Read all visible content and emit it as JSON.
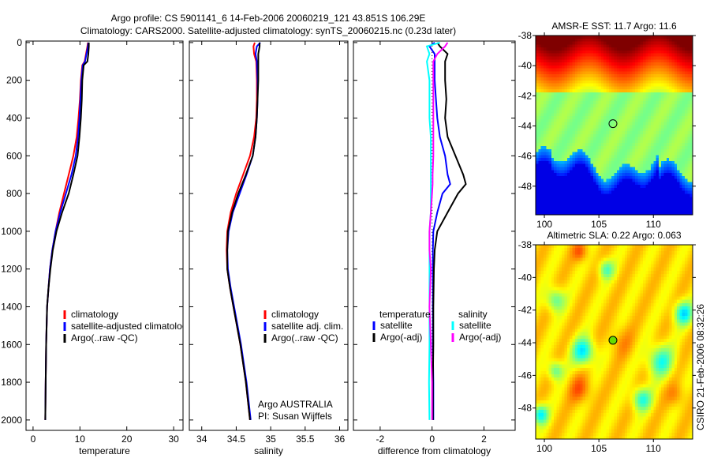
{
  "title": {
    "line1": "Argo profile: CS 5901141_6 14-Feb-2006 20060219_121 43.851S 106.29E",
    "line2": "Climatology: CARS2000. Satellite-adjusted climatology: synTS_20060215.nc (0.23d later)"
  },
  "footer_stamp": "CSIRO 21-Feb-2006 08:32:26",
  "credit": {
    "line1": "Argo AUSTRALIA",
    "line2": "PI: Susan Wijffels"
  },
  "colors": {
    "climatology": "#ff0000",
    "satellite": "#0000ff",
    "argo": "#000000",
    "sal_satellite": "#00ffff",
    "sal_argo": "#ff00ff"
  },
  "chart_data": [
    {
      "type": "line",
      "id": "temperature",
      "xlabel": "temperature",
      "ylabel": "",
      "xlim": [
        -1.5,
        32
      ],
      "ylim": [
        2055,
        -8
      ],
      "xticks": [
        0,
        10,
        20,
        30
      ],
      "yticks": [
        0,
        200,
        400,
        600,
        800,
        1000,
        1200,
        1400,
        1600,
        1800,
        2000
      ],
      "legend": {
        "placement": "center-left",
        "entries": [
          "climatology",
          "satellite-adjusted climatology",
          "Argo(..raw -QC)"
        ]
      },
      "depth": [
        0,
        20,
        60,
        100,
        120,
        200,
        300,
        400,
        500,
        600,
        700,
        800,
        900,
        1000,
        1100,
        1200,
        1300,
        1400,
        1600,
        1800,
        2000
      ],
      "series": [
        {
          "name": "climatology",
          "color": "#ff0000",
          "values": [
            11.7,
            11.6,
            11.3,
            11.0,
            10.5,
            10.2,
            10.0,
            9.7,
            9.3,
            8.6,
            7.6,
            6.6,
            5.6,
            4.8,
            4.1,
            3.6,
            3.3,
            3.0,
            2.8,
            2.7,
            2.6
          ]
        },
        {
          "name": "satellite-adjusted climatology",
          "color": "#0000ff",
          "values": [
            11.8,
            11.7,
            11.4,
            11.1,
            10.6,
            10.3,
            10.1,
            9.9,
            9.6,
            9.1,
            8.2,
            7.0,
            5.8,
            4.8,
            4.1,
            3.6,
            3.3,
            3.0,
            2.8,
            2.7,
            2.6
          ]
        },
        {
          "name": "Argo(..raw -QC)",
          "color": "#000000",
          "values": [
            11.9,
            11.9,
            11.8,
            11.6,
            10.8,
            10.5,
            10.4,
            10.2,
            9.9,
            9.5,
            8.6,
            7.6,
            6.2,
            5.0,
            4.2,
            3.7,
            3.3,
            3.0,
            2.8,
            2.7,
            2.6
          ]
        }
      ]
    },
    {
      "type": "line",
      "id": "salinity",
      "xlabel": "salinity",
      "xlim": [
        33.82,
        36.12
      ],
      "ylim": [
        2055,
        -8
      ],
      "xticks": [
        34,
        34.5,
        35,
        35.5,
        36
      ],
      "legend": {
        "placement": "center-right",
        "entries": [
          "climatology",
          "satellite adj. clim.",
          "Argo(..raw -QC)"
        ]
      },
      "depth": [
        0,
        20,
        60,
        100,
        200,
        300,
        400,
        500,
        600,
        700,
        800,
        900,
        1000,
        1100,
        1200,
        1300,
        1400,
        1600,
        1800,
        2000
      ],
      "series": [
        {
          "name": "climatology",
          "color": "#ff0000",
          "values": [
            34.77,
            34.75,
            34.76,
            34.79,
            34.8,
            34.8,
            34.79,
            34.76,
            34.7,
            34.6,
            34.5,
            34.42,
            34.37,
            34.36,
            34.37,
            34.41,
            34.46,
            34.56,
            34.64,
            34.7
          ]
        },
        {
          "name": "satellite adj. clim.",
          "color": "#0000ff",
          "values": [
            34.85,
            34.8,
            34.78,
            34.8,
            34.81,
            34.81,
            34.8,
            34.78,
            34.74,
            34.65,
            34.55,
            34.45,
            34.39,
            34.37,
            34.38,
            34.42,
            34.47,
            34.57,
            34.65,
            34.71
          ]
        },
        {
          "name": "Argo(..raw -QC)",
          "color": "#000000",
          "values": [
            34.84,
            34.84,
            34.82,
            34.82,
            34.82,
            34.81,
            34.8,
            34.78,
            34.74,
            34.64,
            34.53,
            34.44,
            34.38,
            34.37,
            34.37,
            34.41,
            34.46,
            34.56,
            34.64,
            34.7
          ]
        }
      ]
    },
    {
      "type": "line",
      "id": "difference",
      "xlabel": "difference from climatology",
      "xlim": [
        -3.03,
        3.2
      ],
      "ylim": [
        2055,
        -8
      ],
      "xticks": [
        -2,
        0,
        2
      ],
      "legend": {
        "placement": "center",
        "headers": [
          "temperature",
          "salinity"
        ],
        "entries": [
          "satellite",
          "Argo(-adj)",
          "satellite",
          "Argo(-adj)"
        ]
      },
      "depth": [
        0,
        20,
        60,
        100,
        200,
        300,
        400,
        500,
        600,
        700,
        750,
        800,
        900,
        1000,
        1100,
        1200,
        1400,
        1600,
        1800,
        2000
      ],
      "series": [
        {
          "name": "temperature satellite",
          "color": "#0000ff",
          "values": [
            0.1,
            -0.1,
            0.1,
            0.1,
            0.1,
            0.15,
            0.2,
            0.3,
            0.5,
            0.6,
            0.7,
            0.4,
            0.2,
            0.05,
            0.03,
            0.03,
            0.03,
            0.03,
            0.05,
            0.05
          ]
        },
        {
          "name": "temperature Argo(-adj)",
          "color": "#000000",
          "values": [
            0.2,
            0.3,
            0.6,
            0.5,
            0.5,
            0.55,
            0.5,
            0.6,
            0.9,
            1.2,
            1.3,
            1.0,
            0.6,
            0.2,
            0.1,
            0.07,
            0.05,
            0.05,
            0.03,
            0.03
          ]
        },
        {
          "name": "salinity satellite",
          "color": "#00ffff",
          "values": [
            0.3,
            -0.2,
            -0.1,
            -0.2,
            -0.1,
            -0.1,
            -0.1,
            -0.05,
            -0.05,
            -0.05,
            -0.05,
            -0.05,
            -0.05,
            -0.1,
            -0.1,
            -0.1,
            -0.1,
            -0.1,
            -0.12,
            -0.1
          ]
        },
        {
          "name": "salinity Argo(-adj)",
          "color": "#ff00ff",
          "values": [
            0.6,
            0.5,
            0.2,
            0.05,
            0.05,
            0.05,
            0.05,
            0.05,
            0.05,
            0.02,
            0.02,
            0.0,
            -0.05,
            -0.1,
            -0.1,
            -0.05,
            -0.1,
            -0.05,
            0.0,
            0.0
          ]
        }
      ]
    },
    {
      "type": "heatmap",
      "id": "sst_map",
      "title": "AMSR-E SST: 11.7 Argo: 11.6",
      "xlim": [
        99.2,
        113.6
      ],
      "ylim": [
        -49.9,
        -38
      ],
      "xticks": [
        100,
        105,
        110
      ],
      "yticks": [
        -38,
        -40,
        -42,
        -44,
        -46,
        -48
      ],
      "marker": {
        "lon": 106.29,
        "lat": -43.85
      }
    },
    {
      "type": "heatmap",
      "id": "sla_map",
      "title": "Altimetric SLA: 0.22 Argo: 0.063",
      "xlim": [
        99.2,
        113.6
      ],
      "ylim": [
        -49.9,
        -38
      ],
      "xticks": [
        100,
        105,
        110
      ],
      "yticks": [
        -38,
        -40,
        -42,
        -44,
        -46,
        -48
      ],
      "marker": {
        "lon": 106.29,
        "lat": -43.85
      }
    }
  ]
}
